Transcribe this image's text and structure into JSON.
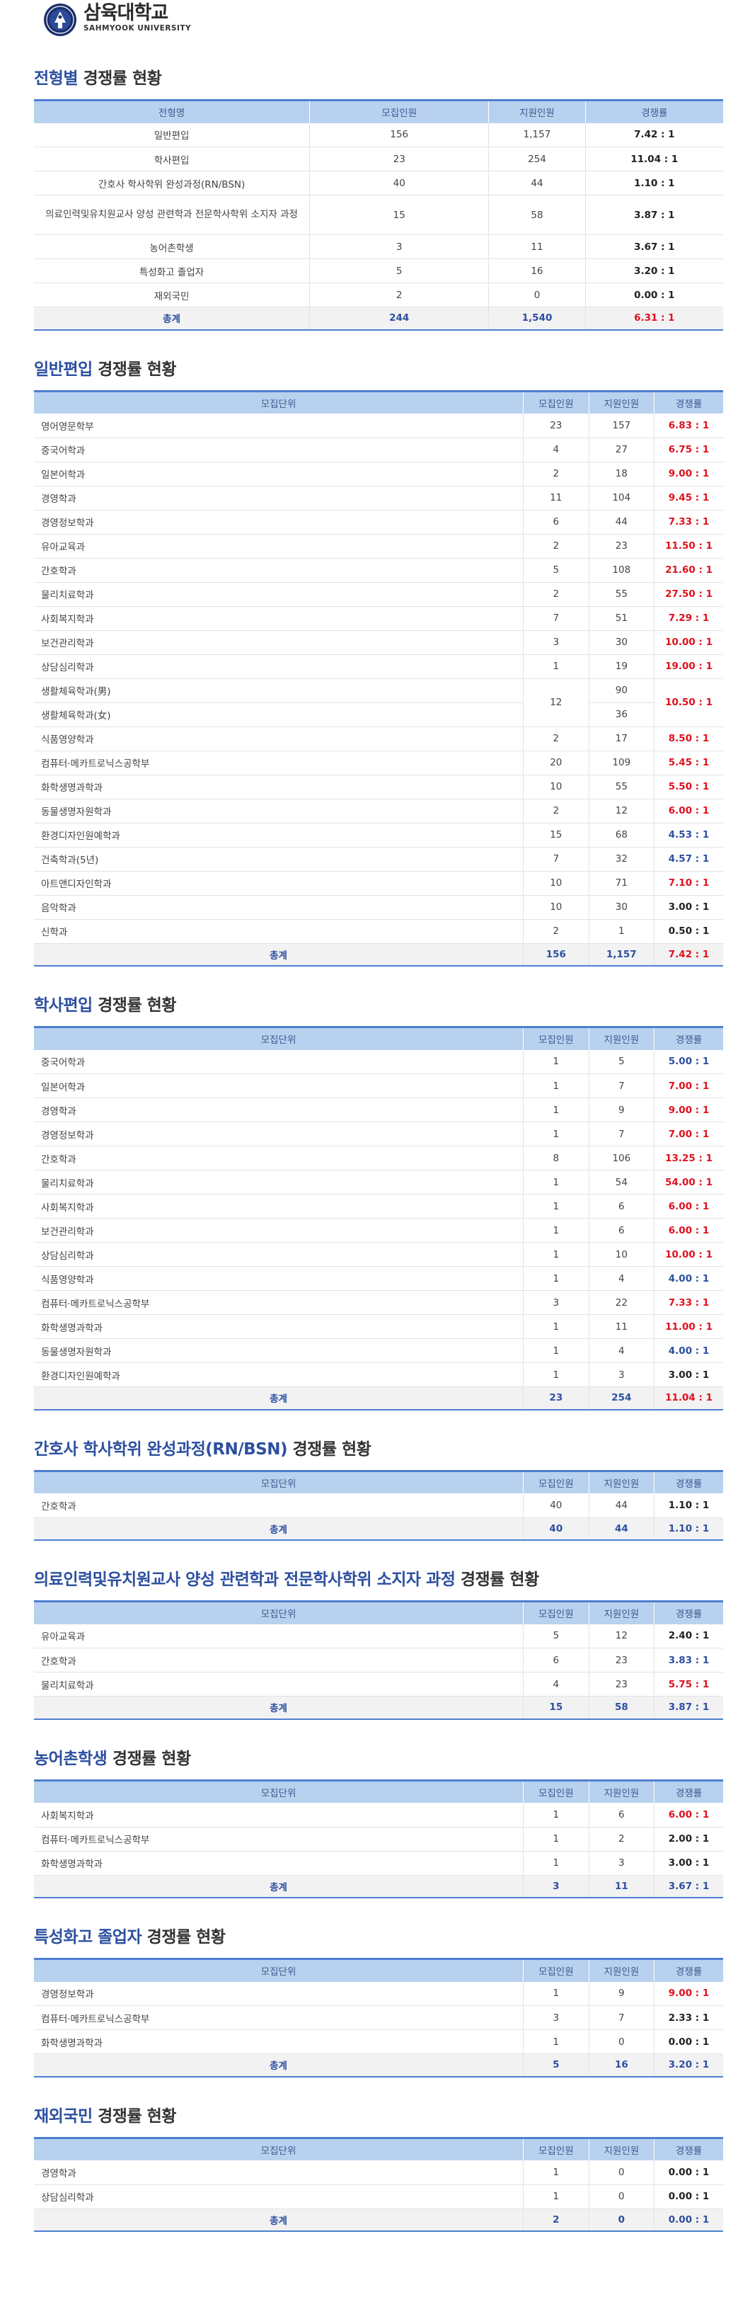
{
  "logo": {
    "ko": "삼육대학교",
    "en": "SAHMYOOK UNIVERSITY"
  },
  "summary": {
    "title_hl": "전형별",
    "title_rest": " 경쟁률 현황",
    "headers": [
      "전형명",
      "모집인원",
      "지원인원",
      "경쟁률"
    ],
    "rows": [
      {
        "name": "일반편입",
        "quota": "156",
        "applicants": "1,157",
        "ratio": "7.42 : 1",
        "color": "dark"
      },
      {
        "name": "학사편입",
        "quota": "23",
        "applicants": "254",
        "ratio": "11.04 : 1",
        "color": "dark"
      },
      {
        "name": "간호사 학사학위 완성과정(RN/BSN)",
        "quota": "40",
        "applicants": "44",
        "ratio": "1.10 : 1",
        "color": "dark"
      },
      {
        "name": "의료인력및유치원교사 양성 관련학과 전문학사학위 소지자 과정",
        "quota": "15",
        "applicants": "58",
        "ratio": "3.87 : 1",
        "color": "dark",
        "tall": true
      },
      {
        "name": "농어촌학생",
        "quota": "3",
        "applicants": "11",
        "ratio": "3.67 : 1",
        "color": "dark"
      },
      {
        "name": "특성화고 졸업자",
        "quota": "5",
        "applicants": "16",
        "ratio": "3.20 : 1",
        "color": "dark"
      },
      {
        "name": "재외국민",
        "quota": "2",
        "applicants": "0",
        "ratio": "0.00 : 1",
        "color": "dark"
      }
    ],
    "total": {
      "name": "총계",
      "quota": "244",
      "applicants": "1,540",
      "ratio": "6.31 : 1",
      "color": "red"
    }
  },
  "general": {
    "title_hl": "일반편입",
    "title_rest": " 경쟁률 현황",
    "headers": [
      "모집단위",
      "모집인원",
      "지원인원",
      "경쟁률"
    ],
    "rows": [
      {
        "name": "영어영문학부",
        "quota": "23",
        "applicants": "157",
        "ratio": "6.83 : 1",
        "color": "red"
      },
      {
        "name": "중국어학과",
        "quota": "4",
        "applicants": "27",
        "ratio": "6.75 : 1",
        "color": "red"
      },
      {
        "name": "일본어학과",
        "quota": "2",
        "applicants": "18",
        "ratio": "9.00 : 1",
        "color": "red"
      },
      {
        "name": "경영학과",
        "quota": "11",
        "applicants": "104",
        "ratio": "9.45 : 1",
        "color": "red"
      },
      {
        "name": "경영정보학과",
        "quota": "6",
        "applicants": "44",
        "ratio": "7.33 : 1",
        "color": "red"
      },
      {
        "name": "유아교육과",
        "quota": "2",
        "applicants": "23",
        "ratio": "11.50 : 1",
        "color": "red"
      },
      {
        "name": "간호학과",
        "quota": "5",
        "applicants": "108",
        "ratio": "21.60 : 1",
        "color": "red"
      },
      {
        "name": "물리치료학과",
        "quota": "2",
        "applicants": "55",
        "ratio": "27.50 : 1",
        "color": "red"
      },
      {
        "name": "사회복지학과",
        "quota": "7",
        "applicants": "51",
        "ratio": "7.29 : 1",
        "color": "red"
      },
      {
        "name": "보건관리학과",
        "quota": "3",
        "applicants": "30",
        "ratio": "10.00 : 1",
        "color": "red"
      },
      {
        "name": "상담심리학과",
        "quota": "1",
        "applicants": "19",
        "ratio": "19.00 : 1",
        "color": "red"
      }
    ],
    "sports": {
      "name_m": "생활체육학과(男)",
      "name_f": "생활체육학과(女)",
      "quota": "12",
      "applicants_m": "90",
      "applicants_f": "36",
      "ratio": "10.50 : 1",
      "color": "red"
    },
    "rows2": [
      {
        "name": "식품영양학과",
        "quota": "2",
        "applicants": "17",
        "ratio": "8.50 : 1",
        "color": "red"
      },
      {
        "name": "컴퓨터·메카트로닉스공학부",
        "quota": "20",
        "applicants": "109",
        "ratio": "5.45 : 1",
        "color": "red"
      },
      {
        "name": "화학생명과학과",
        "quota": "10",
        "applicants": "55",
        "ratio": "5.50 : 1",
        "color": "red"
      },
      {
        "name": "동물생명자원학과",
        "quota": "2",
        "applicants": "12",
        "ratio": "6.00 : 1",
        "color": "red"
      },
      {
        "name": "환경디자인원예학과",
        "quota": "15",
        "applicants": "68",
        "ratio": "4.53 : 1",
        "color": "blue"
      },
      {
        "name": "건축학과(5년)",
        "quota": "7",
        "applicants": "32",
        "ratio": "4.57 : 1",
        "color": "blue"
      },
      {
        "name": "아트앤디자인학과",
        "quota": "10",
        "applicants": "71",
        "ratio": "7.10 : 1",
        "color": "red"
      },
      {
        "name": "음악학과",
        "quota": "10",
        "applicants": "30",
        "ratio": "3.00 : 1",
        "color": "dark"
      },
      {
        "name": "신학과",
        "quota": "2",
        "applicants": "1",
        "ratio": "0.50 : 1",
        "color": "dark"
      }
    ],
    "total": {
      "name": "총계",
      "quota": "156",
      "applicants": "1,157",
      "ratio": "7.42 : 1",
      "color": "red"
    }
  },
  "bachelor": {
    "title_hl": "학사편입",
    "title_rest": " 경쟁률 현황",
    "headers": [
      "모집단위",
      "모집인원",
      "지원인원",
      "경쟁률"
    ],
    "rows": [
      {
        "name": "중국어학과",
        "quota": "1",
        "applicants": "5",
        "ratio": "5.00 : 1",
        "color": "blue"
      },
      {
        "name": "일본어학과",
        "quota": "1",
        "applicants": "7",
        "ratio": "7.00 : 1",
        "color": "red"
      },
      {
        "name": "경영학과",
        "quota": "1",
        "applicants": "9",
        "ratio": "9.00 : 1",
        "color": "red"
      },
      {
        "name": "경영정보학과",
        "quota": "1",
        "applicants": "7",
        "ratio": "7.00 : 1",
        "color": "red"
      },
      {
        "name": "간호학과",
        "quota": "8",
        "applicants": "106",
        "ratio": "13.25 : 1",
        "color": "red"
      },
      {
        "name": "물리치료학과",
        "quota": "1",
        "applicants": "54",
        "ratio": "54.00 : 1",
        "color": "red"
      },
      {
        "name": "사회복지학과",
        "quota": "1",
        "applicants": "6",
        "ratio": "6.00 : 1",
        "color": "red"
      },
      {
        "name": "보건관리학과",
        "quota": "1",
        "applicants": "6",
        "ratio": "6.00 : 1",
        "color": "red"
      },
      {
        "name": "상담심리학과",
        "quota": "1",
        "applicants": "10",
        "ratio": "10.00 : 1",
        "color": "red"
      },
      {
        "name": "식품영양학과",
        "quota": "1",
        "applicants": "4",
        "ratio": "4.00 : 1",
        "color": "blue"
      },
      {
        "name": "컴퓨터·메카트로닉스공학부",
        "quota": "3",
        "applicants": "22",
        "ratio": "7.33 : 1",
        "color": "red"
      },
      {
        "name": "화학생명과학과",
        "quota": "1",
        "applicants": "11",
        "ratio": "11.00 : 1",
        "color": "red"
      },
      {
        "name": "동물생명자원학과",
        "quota": "1",
        "applicants": "4",
        "ratio": "4.00 : 1",
        "color": "blue"
      },
      {
        "name": "환경디자인원예학과",
        "quota": "1",
        "applicants": "3",
        "ratio": "3.00 : 1",
        "color": "dark"
      }
    ],
    "total": {
      "name": "총계",
      "quota": "23",
      "applicants": "254",
      "ratio": "11.04 : 1",
      "color": "red"
    }
  },
  "rnbsn": {
    "title_hl": "간호사 학사학위 완성과정(RN/BSN)",
    "title_rest": " 경쟁률 현황",
    "headers": [
      "모집단위",
      "모집인원",
      "지원인원",
      "경쟁률"
    ],
    "rows": [
      {
        "name": "간호학과",
        "quota": "40",
        "applicants": "44",
        "ratio": "1.10 : 1",
        "color": "dark"
      }
    ],
    "total": {
      "name": "총계",
      "quota": "40",
      "applicants": "44",
      "ratio": "1.10 : 1",
      "color": "blue"
    }
  },
  "medical": {
    "title_hl": "의료인력및유치원교사 양성 관련학과 전문학사학위 소지자 과정",
    "title_rest": " 경쟁률 현황",
    "headers": [
      "모집단위",
      "모집인원",
      "지원인원",
      "경쟁률"
    ],
    "rows": [
      {
        "name": "유아교육과",
        "quota": "5",
        "applicants": "12",
        "ratio": "2.40 : 1",
        "color": "dark"
      },
      {
        "name": "간호학과",
        "quota": "6",
        "applicants": "23",
        "ratio": "3.83 : 1",
        "color": "blue"
      },
      {
        "name": "물리치료학과",
        "quota": "4",
        "applicants": "23",
        "ratio": "5.75 : 1",
        "color": "red"
      }
    ],
    "total": {
      "name": "총계",
      "quota": "15",
      "applicants": "58",
      "ratio": "3.87 : 1",
      "color": "blue"
    }
  },
  "rural": {
    "title_hl": "농어촌학생",
    "title_rest": " 경쟁률 현황",
    "headers": [
      "모집단위",
      "모집인원",
      "지원인원",
      "경쟁률"
    ],
    "rows": [
      {
        "name": "사회복지학과",
        "quota": "1",
        "applicants": "6",
        "ratio": "6.00 : 1",
        "color": "red"
      },
      {
        "name": "컴퓨터·메카트로닉스공학부",
        "quota": "1",
        "applicants": "2",
        "ratio": "2.00 : 1",
        "color": "dark"
      },
      {
        "name": "화학생명과학과",
        "quota": "1",
        "applicants": "3",
        "ratio": "3.00 : 1",
        "color": "dark"
      }
    ],
    "total": {
      "name": "총계",
      "quota": "3",
      "applicants": "11",
      "ratio": "3.67 : 1",
      "color": "blue"
    }
  },
  "vocational": {
    "title_hl": "특성화고 졸업자",
    "title_rest": " 경쟁률 현황",
    "headers": [
      "모집단위",
      "모집인원",
      "지원인원",
      "경쟁률"
    ],
    "rows": [
      {
        "name": "경영정보학과",
        "quota": "1",
        "applicants": "9",
        "ratio": "9.00 : 1",
        "color": "red"
      },
      {
        "name": "컴퓨터·메카트로닉스공학부",
        "quota": "3",
        "applicants": "7",
        "ratio": "2.33 : 1",
        "color": "dark"
      },
      {
        "name": "화학생명과학과",
        "quota": "1",
        "applicants": "0",
        "ratio": "0.00 : 1",
        "color": "dark"
      }
    ],
    "total": {
      "name": "총계",
      "quota": "5",
      "applicants": "16",
      "ratio": "3.20 : 1",
      "color": "blue"
    }
  },
  "overseas": {
    "title_hl": "재외국민",
    "title_rest": " 경쟁률 현황",
    "headers": [
      "모집단위",
      "모집인원",
      "지원인원",
      "경쟁률"
    ],
    "rows": [
      {
        "name": "경영학과",
        "quota": "1",
        "applicants": "0",
        "ratio": "0.00 : 1",
        "color": "dark"
      },
      {
        "name": "상담심리학과",
        "quota": "1",
        "applicants": "0",
        "ratio": "0.00 : 1",
        "color": "dark"
      }
    ],
    "total": {
      "name": "총계",
      "quota": "2",
      "applicants": "0",
      "ratio": "0.00 : 1",
      "color": "blue"
    }
  }
}
